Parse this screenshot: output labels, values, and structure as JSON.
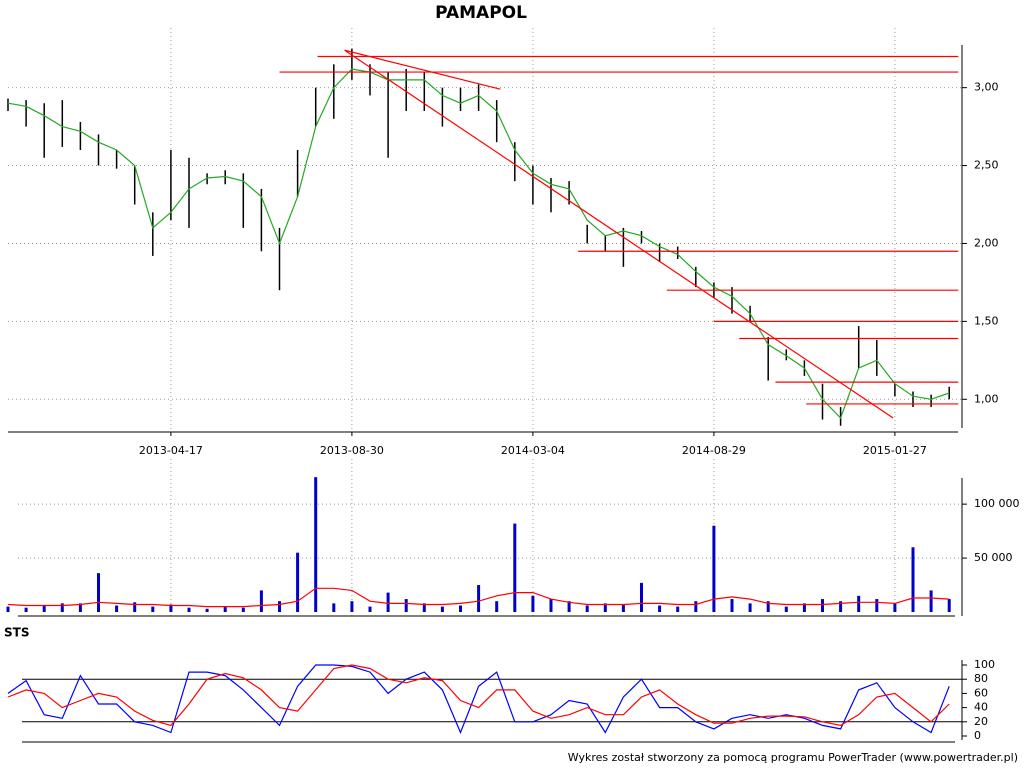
{
  "chart_data": [
    {
      "type": "ohlc",
      "title": "PAMAPOL",
      "categories": [
        null,
        null,
        null,
        null,
        null,
        null,
        null,
        null,
        null,
        "2013-04-17",
        null,
        null,
        null,
        null,
        null,
        null,
        null,
        null,
        null,
        "2013-08-30",
        null,
        null,
        null,
        null,
        null,
        null,
        null,
        null,
        null,
        "2014-03-04",
        null,
        null,
        null,
        null,
        null,
        null,
        null,
        null,
        null,
        "2014-08-29",
        null,
        null,
        null,
        null,
        null,
        null,
        null,
        null,
        null,
        "2015-01-27",
        null,
        null,
        null
      ],
      "high": [
        2.93,
        2.92,
        2.9,
        2.92,
        2.78,
        2.7,
        2.6,
        2.5,
        2.2,
        2.6,
        2.55,
        2.45,
        2.47,
        2.45,
        2.35,
        2.1,
        2.6,
        3.0,
        3.15,
        3.25,
        3.15,
        3.1,
        3.12,
        3.1,
        3.0,
        3.0,
        3.02,
        2.92,
        2.65,
        2.5,
        2.42,
        2.4,
        2.12,
        2.05,
        2.1,
        2.08,
        2.0,
        1.98,
        1.85,
        1.75,
        1.72,
        1.6,
        1.4,
        1.32,
        1.25,
        1.1,
        0.95,
        1.47,
        1.38,
        1.1,
        1.05,
        1.03,
        1.08
      ],
      "low": [
        2.85,
        2.75,
        2.55,
        2.62,
        2.6,
        2.5,
        2.48,
        2.25,
        1.92,
        2.15,
        2.1,
        2.38,
        2.38,
        2.1,
        1.95,
        1.7,
        2.3,
        2.75,
        2.8,
        3.05,
        2.95,
        2.55,
        2.85,
        2.85,
        2.75,
        2.85,
        2.85,
        2.65,
        2.4,
        2.25,
        2.2,
        2.25,
        2.0,
        1.95,
        1.85,
        2.0,
        1.88,
        1.9,
        1.72,
        1.65,
        1.55,
        1.5,
        1.12,
        1.25,
        1.15,
        0.87,
        0.83,
        1.2,
        1.15,
        1.02,
        0.95,
        0.95,
        1.0
      ],
      "color": "#000000",
      "ma": {
        "color": "#22aa22",
        "values": [
          2.9,
          2.88,
          2.82,
          2.75,
          2.72,
          2.65,
          2.6,
          2.5,
          2.1,
          2.2,
          2.35,
          2.42,
          2.43,
          2.4,
          2.3,
          2.0,
          2.3,
          2.75,
          3.0,
          3.12,
          3.1,
          3.05,
          3.05,
          3.05,
          2.95,
          2.9,
          2.95,
          2.85,
          2.6,
          2.45,
          2.38,
          2.35,
          2.15,
          2.05,
          2.08,
          2.05,
          1.98,
          1.93,
          1.82,
          1.72,
          1.66,
          1.55,
          1.35,
          1.28,
          1.2,
          1.0,
          0.88,
          1.2,
          1.25,
          1.1,
          1.02,
          1.0,
          1.04
        ]
      },
      "lines_color": "#ff0000",
      "levels": [
        {
          "y": 3.2,
          "x": [
            17.1,
            52.5
          ]
        },
        {
          "y": 3.1,
          "x": [
            15.0,
            52.5
          ]
        },
        {
          "y": 1.95,
          "x": [
            31.5,
            52.5
          ]
        },
        {
          "y": 1.7,
          "x": [
            36.4,
            52.5
          ]
        },
        {
          "y": 1.5,
          "x": [
            39.0,
            52.5
          ]
        },
        {
          "y": 1.39,
          "x": [
            40.4,
            52.5
          ]
        },
        {
          "y": 1.11,
          "x": [
            42.4,
            52.5
          ]
        },
        {
          "y": 0.97,
          "x": [
            44.1,
            52.5
          ]
        }
      ],
      "trend_lines": [
        {
          "x": [
            18.6,
            27.2
          ],
          "y": [
            3.24,
            2.99
          ]
        },
        {
          "x": [
            18.6,
            48.9
          ],
          "y": [
            3.24,
            0.88
          ]
        }
      ],
      "ylim": [
        0.79,
        3.37
      ],
      "yticks": [
        {
          "value": 1,
          "label": "1,00"
        },
        {
          "value": 1.5,
          "label": "1,50"
        },
        {
          "value": 2,
          "label": "2,00"
        },
        {
          "value": 2.5,
          "label": "2,50"
        },
        {
          "value": 3,
          "label": "3,00"
        }
      ],
      "grid": true
    },
    {
      "type": "bar",
      "color": "#0000cc",
      "values": [
        5000,
        4000,
        6000,
        8000,
        8000,
        36000,
        6000,
        9000,
        5000,
        7000,
        4000,
        3000,
        5000,
        4000,
        20000,
        10000,
        55000,
        125000,
        8000,
        10000,
        5000,
        18000,
        12000,
        8000,
        5000,
        6000,
        25000,
        10000,
        82000,
        15000,
        12000,
        10000,
        6000,
        8000,
        7000,
        27000,
        6000,
        5000,
        10000,
        80000,
        12000,
        8000,
        10000,
        5000,
        8000,
        12000,
        10000,
        15000,
        12000,
        8000,
        60000,
        20000,
        12000
      ],
      "ma": {
        "color": "#ff0000",
        "values": [
          7000,
          6000,
          6000,
          6000,
          7000,
          9000,
          8000,
          7000,
          7000,
          6000,
          6000,
          5000,
          5000,
          5000,
          6000,
          7000,
          10000,
          22000,
          22000,
          20000,
          10000,
          8000,
          8000,
          7000,
          7000,
          8000,
          10000,
          15000,
          18000,
          18000,
          12000,
          9000,
          7000,
          7000,
          7000,
          8000,
          8000,
          7000,
          7000,
          12000,
          14000,
          12000,
          8000,
          7000,
          7000,
          7000,
          8000,
          9000,
          9000,
          8000,
          13000,
          13000,
          12000
        ]
      },
      "ylim": [
        0,
        140000
      ],
      "yticks": [
        {
          "value": 50000,
          "label": "50 000"
        },
        {
          "value": 100000,
          "label": "100 000"
        }
      ],
      "grid": true
    },
    {
      "type": "line",
      "title": "STS",
      "series": [
        {
          "color": "#0000ff",
          "values": [
            60,
            78,
            30,
            25,
            85,
            45,
            45,
            20,
            15,
            5,
            90,
            90,
            85,
            65,
            40,
            15,
            70,
            100,
            100,
            98,
            90,
            60,
            80,
            90,
            65,
            5,
            70,
            90,
            20,
            20,
            30,
            50,
            45,
            5,
            55,
            80,
            40,
            40,
            20,
            10,
            25,
            30,
            25,
            30,
            25,
            15,
            10,
            65,
            75,
            40,
            20,
            5,
            70
          ]
        },
        {
          "color": "#ff0000",
          "values": [
            55,
            65,
            60,
            40,
            50,
            60,
            55,
            35,
            22,
            15,
            45,
            80,
            88,
            82,
            65,
            40,
            35,
            65,
            95,
            100,
            95,
            80,
            75,
            82,
            78,
            50,
            40,
            65,
            65,
            35,
            25,
            30,
            40,
            30,
            30,
            55,
            65,
            45,
            30,
            18,
            18,
            25,
            28,
            28,
            27,
            20,
            15,
            30,
            55,
            60,
            40,
            20,
            45
          ]
        }
      ],
      "levels": [
        80,
        20
      ],
      "ylim": [
        0,
        100
      ],
      "yticks": [
        0,
        20,
        40,
        60,
        80,
        100
      ]
    }
  ],
  "footer": "Wykres został stworzony za pomocą programu PowerTrader (www.powertrader.pl)"
}
